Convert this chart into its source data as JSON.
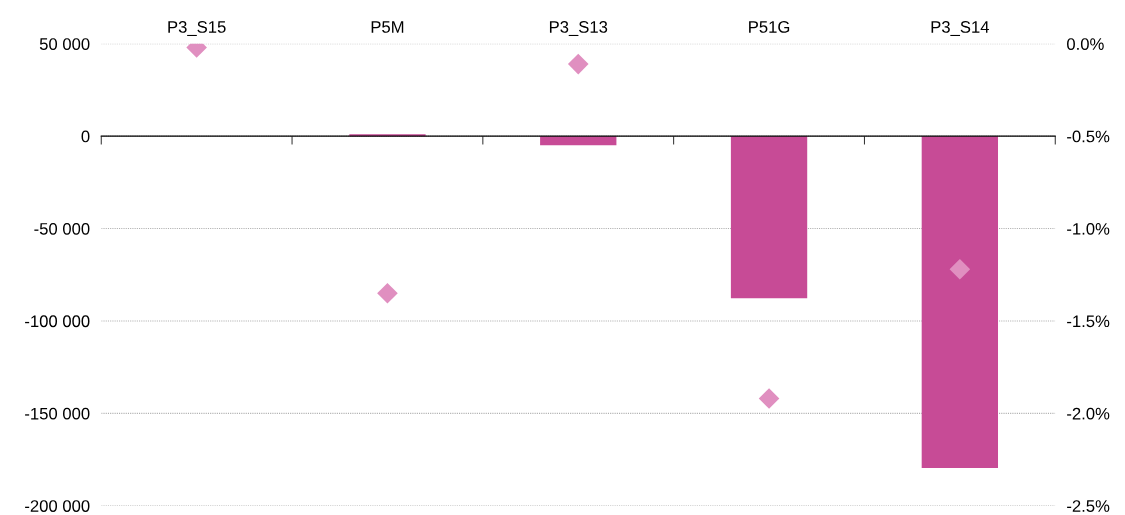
{
  "chart_data": {
    "type": "bar",
    "categories": [
      "P3_S15",
      "P5M",
      "P3_S13",
      "P51G",
      "P3_S14"
    ],
    "series": [
      {
        "color": "#c74b96",
        "values": [
          0,
          1000,
          -4900,
          -87700,
          -179600
        ]
      },
      {
        "type": "scatter",
        "axis": "y2",
        "color": "#e08fc0",
        "marker": "diamond",
        "values": [
          -0.02,
          -1.35,
          -0.11,
          -1.92,
          -1.22
        ]
      }
    ],
    "ylim": [
      -200000,
      50000
    ],
    "yticks": [
      {
        "value": -200000,
        "label": "-200 000"
      },
      {
        "value": -150000,
        "label": "-150 000"
      },
      {
        "value": -100000,
        "label": "-100 000"
      },
      {
        "value": -50000,
        "label": "-50 000"
      },
      {
        "value": 0,
        "label": "0"
      },
      {
        "value": 50000,
        "label": "50 000"
      }
    ],
    "y2lim": [
      -2.5,
      0
    ],
    "y2ticks": [
      {
        "value": -2.5,
        "label": "-2.5%"
      },
      {
        "value": -2.0,
        "label": "-2.0%"
      },
      {
        "value": -1.5,
        "label": "-1.5%"
      },
      {
        "value": -1.0,
        "label": "-1.0%"
      },
      {
        "value": -0.5,
        "label": "-0.5%"
      },
      {
        "value": 0,
        "label": "0.0%"
      }
    ],
    "grid": "y"
  }
}
